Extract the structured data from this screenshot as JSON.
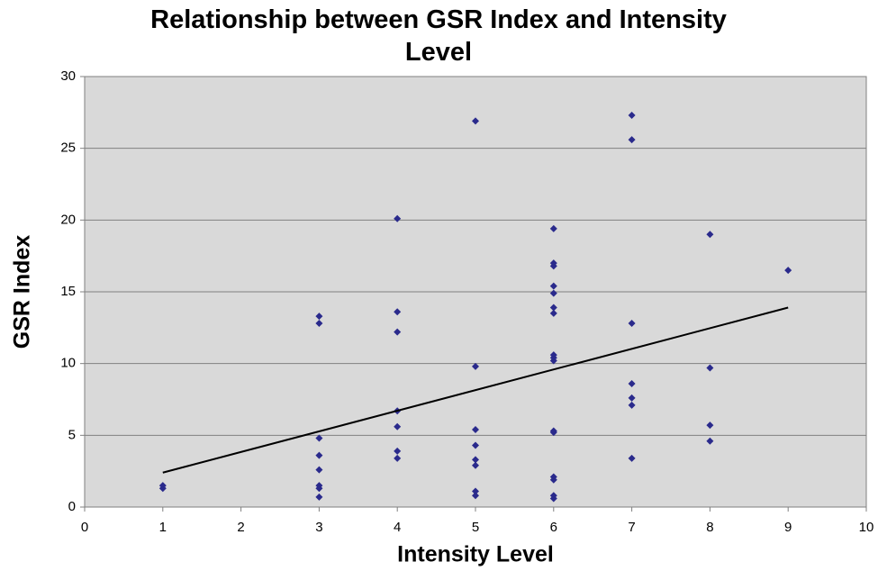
{
  "chart_data": {
    "type": "scatter",
    "title": "Relationship between GSR Index and Intensity Level",
    "x_label": "Intensity Level",
    "y_label": "GSR Index",
    "x": [
      1,
      1,
      3,
      3,
      3,
      3,
      3,
      3,
      3,
      3,
      4,
      4,
      4,
      4,
      4,
      4,
      4,
      5,
      5,
      5,
      5,
      5,
      5,
      5,
      5,
      6,
      6,
      6,
      6,
      6,
      6,
      6,
      6,
      6,
      6,
      6,
      6,
      6,
      6,
      6,
      6,
      7,
      7,
      7,
      7,
      7,
      7,
      7,
      8,
      8,
      8,
      8,
      9
    ],
    "y": [
      1.5,
      1.3,
      13.3,
      12.8,
      4.8,
      3.6,
      2.6,
      1.5,
      1.3,
      0.7,
      20.1,
      13.6,
      12.2,
      6.7,
      5.6,
      3.9,
      3.4,
      26.9,
      9.8,
      5.4,
      4.3,
      3.3,
      2.9,
      1.1,
      0.8,
      19.4,
      17.0,
      16.8,
      15.4,
      14.9,
      13.9,
      13.5,
      10.6,
      10.4,
      10.2,
      5.3,
      5.2,
      2.1,
      1.9,
      0.8,
      0.6,
      27.3,
      25.6,
      12.8,
      8.6,
      7.6,
      7.1,
      3.4,
      19.0,
      9.7,
      5.7,
      4.6,
      16.5
    ],
    "color": "#2a2a8c",
    "trendline": {
      "x": [
        1,
        9
      ],
      "y": [
        2.4,
        13.9
      ],
      "color": "#000000"
    },
    "xlim": [
      0,
      10
    ],
    "xticks": [
      0,
      1,
      2,
      3,
      4,
      5,
      6,
      7,
      8,
      9,
      10
    ],
    "ylim": [
      0,
      30
    ],
    "yticks": [
      0,
      5,
      10,
      15,
      20,
      25,
      30
    ],
    "grid": true
  }
}
